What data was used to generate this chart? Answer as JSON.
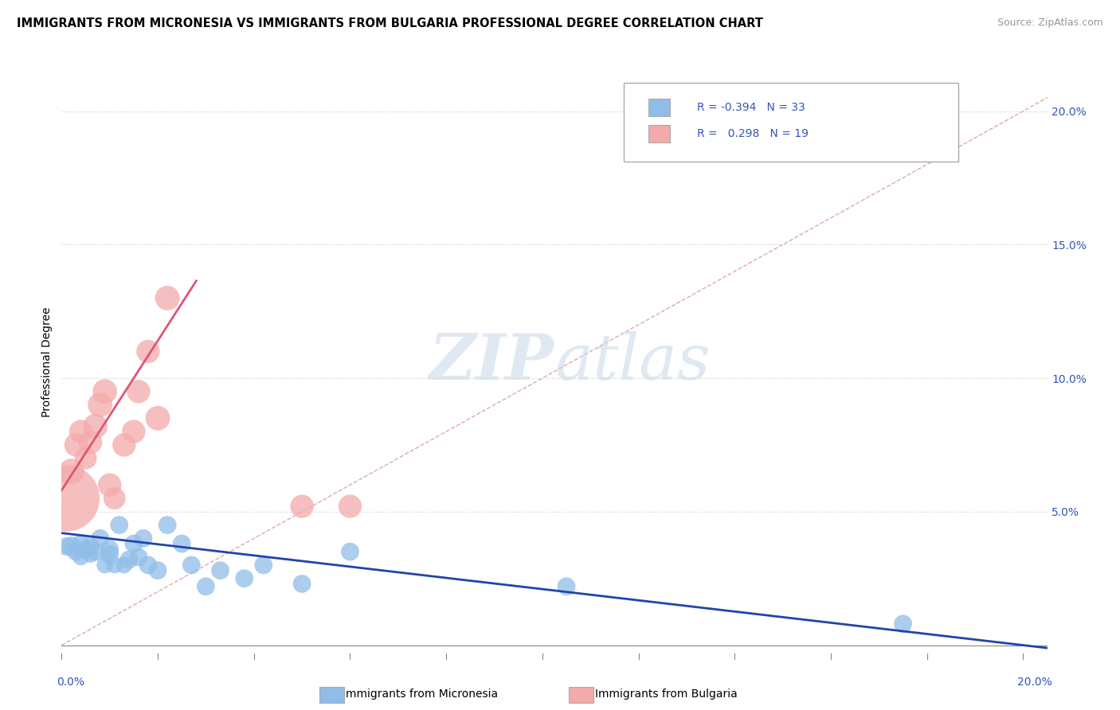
{
  "title": "IMMIGRANTS FROM MICRONESIA VS IMMIGRANTS FROM BULGARIA PROFESSIONAL DEGREE CORRELATION CHART",
  "source": "Source: ZipAtlas.com",
  "ylabel": "Professional Degree",
  "right_yticks": [
    "20.0%",
    "15.0%",
    "10.0%",
    "5.0%"
  ],
  "right_ytick_vals": [
    0.2,
    0.15,
    0.1,
    0.05
  ],
  "xlim": [
    0.0,
    0.205
  ],
  "ylim": [
    -0.003,
    0.215
  ],
  "legend1_r": "-0.394",
  "legend1_n": "33",
  "legend2_r": "0.298",
  "legend2_n": "19",
  "r_color": "#3355bb",
  "n_color": "#3355bb",
  "micronesia_color": "#90bde8",
  "bulgaria_color": "#f4aaaa",
  "line_micronesia_color": "#2244aa",
  "line_bulgaria_color": "#dd5577",
  "diagonal_color": "#ddaaaa",
  "mic_line_slope": -0.21,
  "mic_line_intercept": 0.042,
  "bul_line_slope": 2.8,
  "bul_line_intercept": 0.058,
  "bul_line_xmax": 0.028,
  "micronesia_x": [
    0.001,
    0.002,
    0.003,
    0.004,
    0.004,
    0.005,
    0.006,
    0.006,
    0.007,
    0.008,
    0.009,
    0.01,
    0.01,
    0.011,
    0.012,
    0.013,
    0.014,
    0.015,
    0.016,
    0.017,
    0.018,
    0.02,
    0.022,
    0.025,
    0.027,
    0.03,
    0.033,
    0.038,
    0.042,
    0.05,
    0.06,
    0.105,
    0.175
  ],
  "micronesia_y": [
    0.037,
    0.037,
    0.035,
    0.038,
    0.033,
    0.036,
    0.037,
    0.034,
    0.035,
    0.04,
    0.03,
    0.034,
    0.036,
    0.03,
    0.045,
    0.03,
    0.032,
    0.038,
    0.033,
    0.04,
    0.03,
    0.028,
    0.045,
    0.038,
    0.03,
    0.022,
    0.028,
    0.025,
    0.03,
    0.023,
    0.035,
    0.022,
    0.008
  ],
  "micronesia_size": [
    30,
    35,
    30,
    30,
    25,
    30,
    30,
    25,
    30,
    30,
    25,
    30,
    30,
    25,
    30,
    25,
    30,
    30,
    30,
    30,
    30,
    30,
    30,
    30,
    30,
    30,
    30,
    30,
    30,
    30,
    30,
    30,
    30
  ],
  "bulgaria_x": [
    0.001,
    0.002,
    0.003,
    0.004,
    0.005,
    0.006,
    0.007,
    0.008,
    0.009,
    0.01,
    0.011,
    0.013,
    0.015,
    0.016,
    0.018,
    0.02,
    0.022,
    0.05,
    0.06
  ],
  "bulgaria_y": [
    0.055,
    0.065,
    0.075,
    0.08,
    0.07,
    0.076,
    0.082,
    0.09,
    0.095,
    0.06,
    0.055,
    0.075,
    0.08,
    0.095,
    0.11,
    0.085,
    0.13,
    0.052,
    0.052
  ],
  "bulgaria_size": [
    400,
    60,
    50,
    50,
    45,
    50,
    55,
    55,
    55,
    50,
    45,
    50,
    50,
    50,
    50,
    55,
    55,
    50,
    50
  ]
}
